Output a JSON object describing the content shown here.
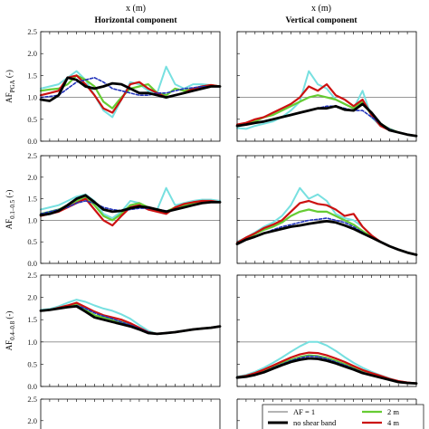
{
  "headers": {
    "x_label_left": "x (m)",
    "x_label_right": "x (m)",
    "col_left": "Horizontal component",
    "col_right": "Vertical component"
  },
  "rows": [
    {
      "ylabel": "AFPGA (-)",
      "ylabel_main": "AF",
      "ylabel_sub": "PGA",
      "ylabel_unit": " (-)"
    },
    {
      "ylabel": "AF0.1-0.5 (-)",
      "ylabel_main": "AF",
      "ylabel_sub": "0.1–0.5",
      "ylabel_unit": " (-)"
    },
    {
      "ylabel": "AF0.4-0.8 (-)",
      "ylabel_main": "AF",
      "ylabel_sub": "0.4–0.8",
      "ylabel_unit": " (-)"
    },
    {
      "ylabel": "",
      "ylabel_main": "",
      "ylabel_sub": "",
      "ylabel_unit": ""
    }
  ],
  "legend": {
    "af1": "AF = 1",
    "no_shear": "no shear band",
    "two_m": "2 m",
    "four_m": "4 m"
  },
  "chart_data": {
    "type": "line",
    "ylim": [
      0,
      2.5
    ],
    "yticks": [
      "2.5",
      "2.0",
      "1.5",
      "1.0",
      "0.5",
      "0.0"
    ],
    "last_row_yticks": [
      "2.5",
      "2.0",
      "1.5"
    ],
    "reference_line": 1.0,
    "x": [
      0,
      0.05,
      0.1,
      0.15,
      0.2,
      0.25,
      0.3,
      0.35,
      0.4,
      0.45,
      0.5,
      0.55,
      0.6,
      0.65,
      0.7,
      0.75,
      0.8,
      0.85,
      0.9,
      0.95,
      1.0
    ],
    "colors": {
      "no_shear": "#000000",
      "two_m": "#66cc33",
      "four_m": "#cc1111",
      "cyan": "#77e0e0",
      "dashed": "#2233bb",
      "af1": "#888888"
    },
    "panels": [
      {
        "row": 0,
        "col": "horizontal",
        "series": {
          "no_shear": [
            0.95,
            0.92,
            1.05,
            1.45,
            1.4,
            1.25,
            1.2,
            1.25,
            1.32,
            1.3,
            1.2,
            1.1,
            1.1,
            1.05,
            1.0,
            1.05,
            1.1,
            1.15,
            1.2,
            1.25,
            1.25
          ],
          "two_m": [
            1.15,
            1.18,
            1.2,
            1.3,
            1.5,
            1.4,
            1.25,
            0.9,
            0.75,
            1.0,
            1.2,
            1.25,
            1.3,
            1.1,
            1.05,
            1.2,
            1.15,
            1.2,
            1.25,
            1.28,
            1.25
          ],
          "four_m": [
            1.05,
            1.1,
            1.15,
            1.45,
            1.5,
            1.3,
            1.05,
            0.75,
            0.65,
            0.95,
            1.3,
            1.35,
            1.2,
            1.1,
            1.0,
            1.05,
            1.1,
            1.2,
            1.25,
            1.28,
            1.25
          ],
          "cyan": [
            1.2,
            1.25,
            1.3,
            1.45,
            1.6,
            1.4,
            1.05,
            0.7,
            0.55,
            0.95,
            1.35,
            1.3,
            1.15,
            1.1,
            1.7,
            1.3,
            1.2,
            1.3,
            1.3,
            1.28,
            1.25
          ],
          "dashed": [
            1.0,
            1.02,
            1.05,
            1.2,
            1.35,
            1.4,
            1.45,
            1.35,
            1.2,
            1.15,
            1.1,
            1.05,
            1.05,
            1.1,
            1.1,
            1.15,
            1.2,
            1.22,
            1.25,
            1.25,
            1.25
          ]
        }
      },
      {
        "row": 0,
        "col": "vertical",
        "series": {
          "no_shear": [
            0.35,
            0.38,
            0.42,
            0.45,
            0.5,
            0.55,
            0.6,
            0.65,
            0.7,
            0.75,
            0.75,
            0.8,
            0.72,
            0.7,
            0.85,
            0.65,
            0.4,
            0.25,
            0.2,
            0.15,
            0.12
          ],
          "two_m": [
            0.35,
            0.4,
            0.45,
            0.55,
            0.6,
            0.7,
            0.8,
            0.9,
            1.0,
            1.05,
            1.0,
            0.95,
            0.85,
            0.75,
            0.9,
            0.6,
            0.4,
            0.28,
            0.2,
            0.15,
            0.12
          ],
          "four_m": [
            0.38,
            0.42,
            0.5,
            0.55,
            0.65,
            0.75,
            0.85,
            1.0,
            1.25,
            1.15,
            1.3,
            1.05,
            0.95,
            0.8,
            0.95,
            0.6,
            0.35,
            0.25,
            0.2,
            0.15,
            0.12
          ],
          "cyan": [
            0.3,
            0.28,
            0.35,
            0.4,
            0.45,
            0.55,
            0.7,
            0.9,
            1.6,
            1.3,
            1.2,
            0.95,
            0.85,
            0.75,
            1.15,
            0.55,
            0.35,
            0.28,
            0.2,
            0.15,
            0.12
          ],
          "dashed": [
            0.35,
            0.38,
            0.42,
            0.45,
            0.5,
            0.55,
            0.6,
            0.65,
            0.7,
            0.75,
            0.8,
            0.8,
            0.75,
            0.7,
            0.7,
            0.55,
            0.4,
            0.28,
            0.2,
            0.15,
            0.12
          ]
        }
      },
      {
        "row": 1,
        "col": "horizontal",
        "series": {
          "no_shear": [
            1.12,
            1.15,
            1.22,
            1.35,
            1.5,
            1.58,
            1.42,
            1.25,
            1.2,
            1.22,
            1.28,
            1.32,
            1.3,
            1.25,
            1.2,
            1.25,
            1.3,
            1.35,
            1.4,
            1.42,
            1.42
          ],
          "two_m": [
            1.15,
            1.2,
            1.25,
            1.35,
            1.45,
            1.55,
            1.35,
            1.1,
            1.0,
            1.15,
            1.35,
            1.4,
            1.3,
            1.22,
            1.2,
            1.3,
            1.35,
            1.4,
            1.42,
            1.42,
            1.42
          ],
          "four_m": [
            1.1,
            1.15,
            1.2,
            1.3,
            1.4,
            1.5,
            1.25,
            1.0,
            0.88,
            1.1,
            1.3,
            1.35,
            1.25,
            1.2,
            1.15,
            1.3,
            1.38,
            1.42,
            1.45,
            1.45,
            1.42
          ],
          "cyan": [
            1.25,
            1.3,
            1.35,
            1.45,
            1.55,
            1.6,
            1.45,
            1.15,
            1.05,
            1.2,
            1.45,
            1.4,
            1.3,
            1.25,
            1.75,
            1.35,
            1.4,
            1.45,
            1.48,
            1.48,
            1.45
          ],
          "dashed": [
            1.15,
            1.2,
            1.25,
            1.3,
            1.4,
            1.45,
            1.4,
            1.3,
            1.25,
            1.22,
            1.25,
            1.28,
            1.28,
            1.25,
            1.22,
            1.25,
            1.3,
            1.35,
            1.4,
            1.42,
            1.42
          ]
        }
      },
      {
        "row": 1,
        "col": "vertical",
        "series": {
          "no_shear": [
            0.45,
            0.55,
            0.62,
            0.7,
            0.75,
            0.8,
            0.85,
            0.88,
            0.92,
            0.95,
            0.98,
            0.95,
            0.88,
            0.8,
            0.7,
            0.6,
            0.5,
            0.4,
            0.32,
            0.25,
            0.2
          ],
          "two_m": [
            0.45,
            0.58,
            0.68,
            0.78,
            0.85,
            0.95,
            1.1,
            1.2,
            1.25,
            1.2,
            1.2,
            1.1,
            1.0,
            0.9,
            0.75,
            0.62,
            0.5,
            0.4,
            0.32,
            0.25,
            0.2
          ],
          "four_m": [
            0.48,
            0.6,
            0.7,
            0.82,
            0.9,
            1.0,
            1.2,
            1.4,
            1.45,
            1.38,
            1.35,
            1.25,
            1.1,
            1.15,
            0.85,
            0.65,
            0.5,
            0.4,
            0.32,
            0.25,
            0.2
          ],
          "cyan": [
            0.5,
            0.6,
            0.72,
            0.85,
            0.95,
            1.1,
            1.35,
            1.75,
            1.5,
            1.6,
            1.45,
            1.15,
            1.05,
            1.0,
            0.85,
            0.65,
            0.5,
            0.4,
            0.32,
            0.25,
            0.2
          ],
          "dashed": [
            0.45,
            0.55,
            0.62,
            0.7,
            0.78,
            0.85,
            0.9,
            0.95,
            1.0,
            1.02,
            1.05,
            1.0,
            0.95,
            0.85,
            0.72,
            0.6,
            0.5,
            0.4,
            0.32,
            0.25,
            0.2
          ]
        }
      },
      {
        "row": 2,
        "col": "horizontal",
        "series": {
          "no_shear": [
            1.7,
            1.72,
            1.75,
            1.78,
            1.8,
            1.68,
            1.55,
            1.5,
            1.45,
            1.4,
            1.35,
            1.28,
            1.2,
            1.18,
            1.2,
            1.22,
            1.25,
            1.28,
            1.3,
            1.32,
            1.35
          ],
          "two_m": [
            1.7,
            1.72,
            1.76,
            1.8,
            1.85,
            1.72,
            1.6,
            1.55,
            1.5,
            1.45,
            1.38,
            1.3,
            1.22,
            1.18,
            1.2,
            1.22,
            1.25,
            1.28,
            1.3,
            1.32,
            1.35
          ],
          "four_m": [
            1.7,
            1.72,
            1.77,
            1.82,
            1.88,
            1.78,
            1.68,
            1.6,
            1.55,
            1.5,
            1.42,
            1.32,
            1.22,
            1.18,
            1.2,
            1.22,
            1.25,
            1.28,
            1.3,
            1.32,
            1.35
          ],
          "cyan": [
            1.72,
            1.74,
            1.8,
            1.88,
            1.95,
            1.9,
            1.82,
            1.75,
            1.7,
            1.62,
            1.52,
            1.38,
            1.25,
            1.18,
            1.2,
            1.22,
            1.25,
            1.28,
            1.3,
            1.32,
            1.35
          ],
          "dashed": [
            1.7,
            1.72,
            1.75,
            1.78,
            1.82,
            1.75,
            1.65,
            1.58,
            1.52,
            1.45,
            1.38,
            1.3,
            1.22,
            1.18,
            1.2,
            1.22,
            1.25,
            1.28,
            1.3,
            1.32,
            1.35
          ]
        }
      },
      {
        "row": 2,
        "col": "vertical",
        "series": {
          "no_shear": [
            0.2,
            0.22,
            0.26,
            0.32,
            0.4,
            0.48,
            0.55,
            0.6,
            0.63,
            0.62,
            0.58,
            0.52,
            0.45,
            0.38,
            0.3,
            0.25,
            0.2,
            0.15,
            0.1,
            0.08,
            0.07
          ],
          "two_m": [
            0.2,
            0.23,
            0.28,
            0.35,
            0.43,
            0.52,
            0.6,
            0.66,
            0.7,
            0.68,
            0.64,
            0.58,
            0.5,
            0.42,
            0.34,
            0.28,
            0.22,
            0.16,
            0.11,
            0.08,
            0.07
          ],
          "four_m": [
            0.21,
            0.24,
            0.3,
            0.38,
            0.47,
            0.56,
            0.65,
            0.72,
            0.76,
            0.75,
            0.7,
            0.63,
            0.55,
            0.46,
            0.37,
            0.3,
            0.24,
            0.17,
            0.12,
            0.09,
            0.07
          ],
          "cyan": [
            0.22,
            0.26,
            0.33,
            0.42,
            0.53,
            0.65,
            0.78,
            0.9,
            1.0,
            1.0,
            0.92,
            0.8,
            0.66,
            0.53,
            0.42,
            0.33,
            0.25,
            0.18,
            0.12,
            0.09,
            0.07
          ],
          "dashed": [
            0.2,
            0.22,
            0.27,
            0.33,
            0.42,
            0.5,
            0.58,
            0.64,
            0.68,
            0.67,
            0.62,
            0.55,
            0.48,
            0.4,
            0.32,
            0.26,
            0.2,
            0.15,
            0.1,
            0.08,
            0.07
          ]
        }
      }
    ]
  }
}
